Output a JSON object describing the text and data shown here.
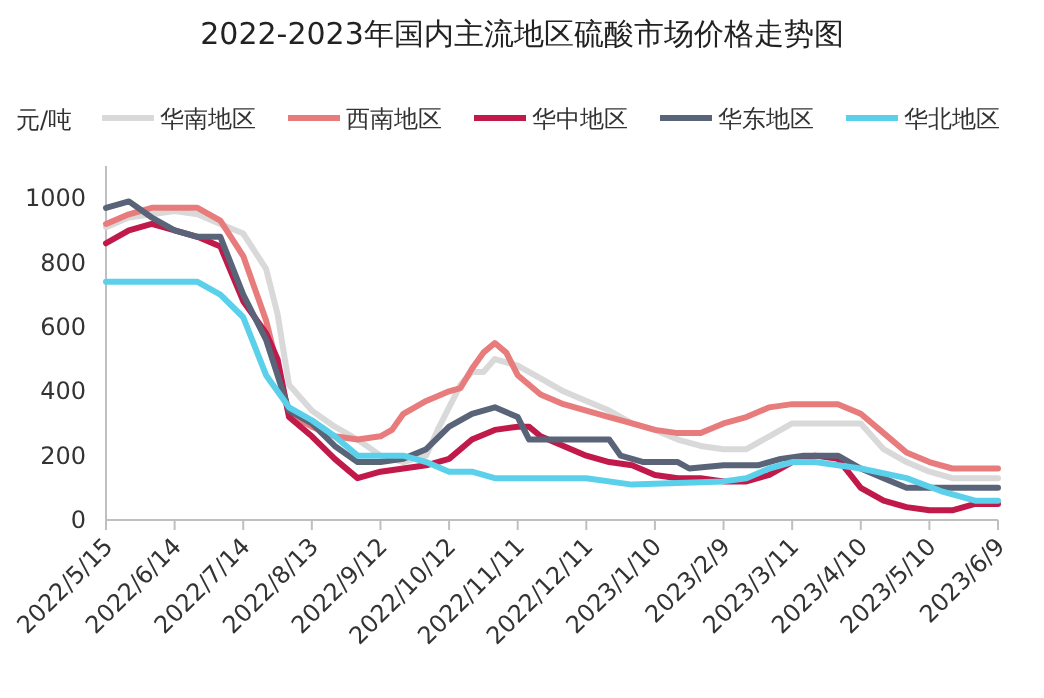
{
  "chart_data": {
    "type": "line",
    "title": "2022-2023年国内主流地区硫酸市场价格走势图",
    "ylabel": "元/吨",
    "legend": "top",
    "grid": false,
    "line_style": "solid",
    "xlim": [
      "2022-05-15",
      "2023-06-09"
    ],
    "xticks": [
      {
        "value": "2022-05-15",
        "label": "2022/5/15"
      },
      {
        "value": "2022-06-14",
        "label": "2022/6/14"
      },
      {
        "value": "2022-07-14",
        "label": "2022/7/14"
      },
      {
        "value": "2022-08-13",
        "label": "2022/8/13"
      },
      {
        "value": "2022-09-12",
        "label": "2022/9/12"
      },
      {
        "value": "2022-10-12",
        "label": "2022/10/12"
      },
      {
        "value": "2022-11-11",
        "label": "2022/11/11"
      },
      {
        "value": "2022-12-11",
        "label": "2022/12/11"
      },
      {
        "value": "2023-01-10",
        "label": "2023/1/10"
      },
      {
        "value": "2023-02-09",
        "label": "2023/2/9"
      },
      {
        "value": "2023-03-11",
        "label": "2023/3/11"
      },
      {
        "value": "2023-04-10",
        "label": "2023/4/10"
      },
      {
        "value": "2023-05-10",
        "label": "2023/5/10"
      },
      {
        "value": "2023-06-09",
        "label": "2023/6/9"
      }
    ],
    "ylim": [
      0,
      1100
    ],
    "yticks": [
      0,
      200,
      400,
      600,
      800,
      1000
    ],
    "series": [
      {
        "name": "华南地区",
        "color": "#d9d9d9",
        "x": [
          "2022-05-15",
          "2022-05-25",
          "2022-06-04",
          "2022-06-14",
          "2022-06-24",
          "2022-07-04",
          "2022-07-14",
          "2022-07-24",
          "2022-07-29",
          "2022-08-03",
          "2022-08-13",
          "2022-08-23",
          "2022-09-02",
          "2022-09-12",
          "2022-09-22",
          "2022-10-02",
          "2022-10-07",
          "2022-10-17",
          "2022-10-22",
          "2022-10-27",
          "2022-11-01",
          "2022-11-11",
          "2022-11-21",
          "2022-12-01",
          "2022-12-11",
          "2022-12-21",
          "2022-12-31",
          "2023-01-10",
          "2023-01-20",
          "2023-01-30",
          "2023-02-09",
          "2023-02-19",
          "2023-03-01",
          "2023-03-11",
          "2023-03-21",
          "2023-03-31",
          "2023-04-10",
          "2023-04-20",
          "2023-04-30",
          "2023-05-10",
          "2023-05-20",
          "2023-05-30",
          "2023-06-09"
        ],
        "values": [
          910,
          940,
          950,
          960,
          950,
          920,
          890,
          780,
          640,
          420,
          340,
          290,
          250,
          200,
          180,
          200,
          280,
          420,
          460,
          460,
          500,
          480,
          440,
          400,
          370,
          340,
          300,
          280,
          250,
          230,
          220,
          220,
          260,
          300,
          300,
          300,
          300,
          220,
          180,
          150,
          130,
          130,
          130
        ]
      },
      {
        "name": "西南地区",
        "color": "#e87c7c",
        "x": [
          "2022-05-15",
          "2022-05-25",
          "2022-06-04",
          "2022-06-14",
          "2022-06-24",
          "2022-07-04",
          "2022-07-14",
          "2022-07-24",
          "2022-08-03",
          "2022-08-13",
          "2022-08-23",
          "2022-09-02",
          "2022-09-12",
          "2022-09-17",
          "2022-09-22",
          "2022-10-02",
          "2022-10-12",
          "2022-10-17",
          "2022-10-22",
          "2022-10-27",
          "2022-11-01",
          "2022-11-06",
          "2022-11-11",
          "2022-11-21",
          "2022-12-01",
          "2022-12-11",
          "2022-12-21",
          "2022-12-31",
          "2023-01-10",
          "2023-01-20",
          "2023-01-30",
          "2023-02-09",
          "2023-02-19",
          "2023-03-01",
          "2023-03-11",
          "2023-03-21",
          "2023-03-31",
          "2023-04-10",
          "2023-04-20",
          "2023-04-30",
          "2023-05-10",
          "2023-05-20",
          "2023-05-30",
          "2023-06-09"
        ],
        "values": [
          920,
          950,
          970,
          970,
          970,
          930,
          820,
          620,
          330,
          290,
          260,
          250,
          260,
          280,
          330,
          370,
          400,
          410,
          470,
          520,
          550,
          520,
          450,
          390,
          360,
          340,
          320,
          300,
          280,
          270,
          270,
          300,
          320,
          350,
          360,
          360,
          360,
          330,
          270,
          210,
          180,
          160,
          160,
          160
        ]
      },
      {
        "name": "华中地区",
        "color": "#c0194a",
        "x": [
          "2022-05-15",
          "2022-05-25",
          "2022-06-04",
          "2022-06-14",
          "2022-06-24",
          "2022-07-04",
          "2022-07-14",
          "2022-07-24",
          "2022-07-29",
          "2022-08-03",
          "2022-08-13",
          "2022-08-23",
          "2022-09-02",
          "2022-09-12",
          "2022-09-22",
          "2022-10-02",
          "2022-10-12",
          "2022-10-22",
          "2022-11-01",
          "2022-11-11",
          "2022-11-16",
          "2022-11-21",
          "2022-12-01",
          "2022-12-11",
          "2022-12-21",
          "2022-12-31",
          "2023-01-10",
          "2023-01-20",
          "2023-01-30",
          "2023-02-09",
          "2023-02-19",
          "2023-03-01",
          "2023-03-11",
          "2023-03-21",
          "2023-03-31",
          "2023-04-10",
          "2023-04-20",
          "2023-04-30",
          "2023-05-10",
          "2023-05-20",
          "2023-05-30",
          "2023-06-09"
        ],
        "values": [
          860,
          900,
          920,
          900,
          880,
          850,
          680,
          580,
          500,
          320,
          260,
          190,
          130,
          150,
          160,
          170,
          190,
          250,
          280,
          290,
          290,
          260,
          230,
          200,
          180,
          170,
          140,
          130,
          130,
          120,
          120,
          140,
          180,
          200,
          190,
          100,
          60,
          40,
          30,
          30,
          50,
          50
        ]
      },
      {
        "name": "华东地区",
        "color": "#5a6478",
        "x": [
          "2022-05-15",
          "2022-05-25",
          "2022-06-04",
          "2022-06-14",
          "2022-06-24",
          "2022-07-04",
          "2022-07-14",
          "2022-07-24",
          "2022-08-03",
          "2022-08-13",
          "2022-08-23",
          "2022-09-02",
          "2022-09-12",
          "2022-09-22",
          "2022-10-02",
          "2022-10-12",
          "2022-10-22",
          "2022-11-01",
          "2022-11-11",
          "2022-11-16",
          "2022-12-01",
          "2022-12-21",
          "2022-12-26",
          "2023-01-05",
          "2023-01-20",
          "2023-01-25",
          "2023-02-09",
          "2023-02-24",
          "2023-03-06",
          "2023-03-16",
          "2023-03-31",
          "2023-04-10",
          "2023-04-20",
          "2023-04-30",
          "2023-05-10",
          "2023-06-09"
        ],
        "values": [
          970,
          990,
          940,
          900,
          880,
          880,
          700,
          560,
          340,
          300,
          230,
          180,
          180,
          190,
          220,
          290,
          330,
          350,
          320,
          250,
          250,
          250,
          200,
          180,
          180,
          160,
          170,
          170,
          190,
          200,
          200,
          160,
          130,
          100,
          100,
          100
        ]
      },
      {
        "name": "华北地区",
        "color": "#5bd0ea",
        "x": [
          "2022-05-15",
          "2022-06-24",
          "2022-07-04",
          "2022-07-14",
          "2022-07-24",
          "2022-08-03",
          "2022-08-13",
          "2022-08-23",
          "2022-09-02",
          "2022-09-22",
          "2022-10-02",
          "2022-10-12",
          "2022-10-22",
          "2022-11-01",
          "2022-12-11",
          "2022-12-31",
          "2023-02-09",
          "2023-02-19",
          "2023-03-01",
          "2023-03-11",
          "2023-03-21",
          "2023-04-10",
          "2023-04-30",
          "2023-05-15",
          "2023-05-30",
          "2023-06-09"
        ],
        "values": [
          740,
          740,
          700,
          630,
          450,
          350,
          310,
          260,
          200,
          200,
          180,
          150,
          150,
          130,
          130,
          110,
          120,
          130,
          160,
          180,
          180,
          160,
          130,
          90,
          60,
          60
        ]
      }
    ]
  }
}
